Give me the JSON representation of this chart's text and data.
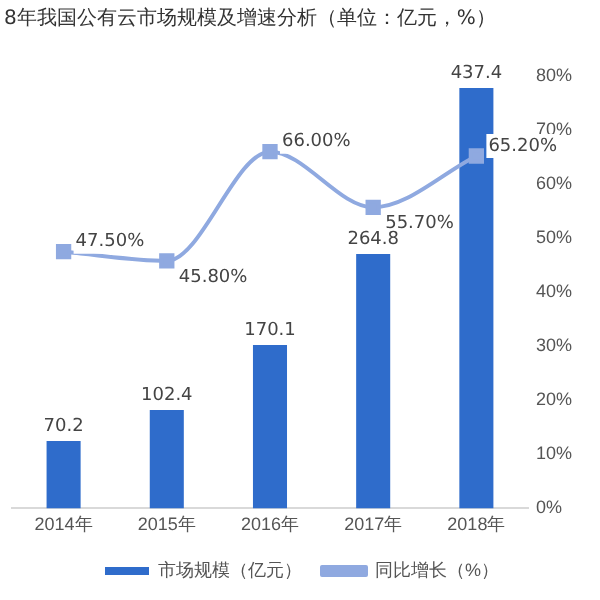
{
  "chart_data": {
    "type": "bar",
    "title": "8年我国公有云市场规模及增速分析（单位：亿元，%）",
    "categories": [
      "2014年",
      "2015年",
      "2016年",
      "2017年",
      "2018年"
    ],
    "series": [
      {
        "name": "市场规模（亿元）",
        "color": "#2f6ccb",
        "values": [
          70.2,
          102.4,
          170.1,
          264.8,
          437.4
        ],
        "value_labels": [
          "70.2",
          "102.4",
          "170.1",
          "264.8",
          "437.4"
        ]
      },
      {
        "name": "同比增长（%）",
        "type": "line",
        "axis": "y2",
        "color": "#8fa9e0",
        "values": [
          47.5,
          45.8,
          66.0,
          55.7,
          65.2
        ],
        "value_labels": [
          "47.50%",
          "45.80%",
          "66.00%",
          "55.70%",
          "65.20%"
        ]
      }
    ],
    "y2lim": [
      0,
      80
    ],
    "y2ticks": [
      {
        "value": 0,
        "label": "0%"
      },
      {
        "value": 10,
        "label": "10%"
      },
      {
        "value": 20,
        "label": "20%"
      },
      {
        "value": 30,
        "label": "30%"
      },
      {
        "value": 40,
        "label": "40%"
      },
      {
        "value": 50,
        "label": "50%"
      },
      {
        "value": 60,
        "label": "60%"
      },
      {
        "value": 70,
        "label": "70%"
      },
      {
        "value": 80,
        "label": "80%"
      }
    ],
    "grid": false,
    "legend": "bottom",
    "marker": "square",
    "line_style": "solid"
  }
}
